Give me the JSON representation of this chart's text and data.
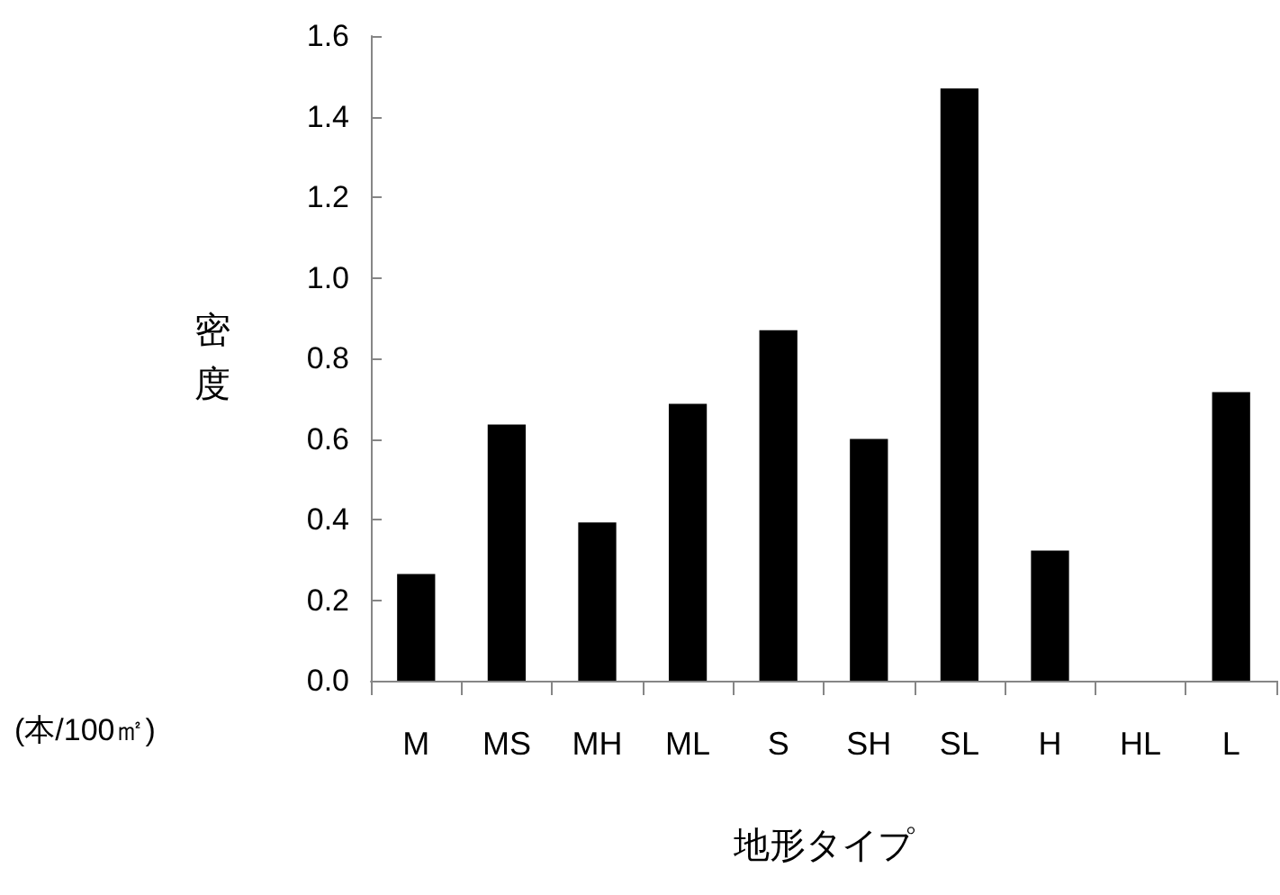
{
  "chart_data": {
    "type": "bar",
    "xlabel": "地形タイプ",
    "ylabel": "密度",
    "annotations": [
      "(本/100㎡)"
    ],
    "categories": [
      "M",
      "MS",
      "MH",
      "ML",
      "S",
      "SH",
      "SL",
      "H",
      "HL",
      "L"
    ],
    "values": [
      0.265,
      0.636,
      0.393,
      0.687,
      0.87,
      0.6,
      1.47,
      0.323,
      0,
      0.716
    ],
    "color": "#000000",
    "ylim": [
      0,
      1.6
    ],
    "yticks": [
      {
        "value": 0,
        "label": "0.0"
      },
      {
        "value": 0.2,
        "label": "0.2"
      },
      {
        "value": 0.4,
        "label": "0.4"
      },
      {
        "value": 0.6,
        "label": "0.6"
      },
      {
        "value": 0.8,
        "label": "0.8"
      },
      {
        "value": 1,
        "label": "1.0"
      },
      {
        "value": 1.2,
        "label": "1.2"
      },
      {
        "value": 1.4,
        "label": "1.4"
      },
      {
        "value": 1.6,
        "label": "1.6"
      }
    ],
    "grid": false
  }
}
